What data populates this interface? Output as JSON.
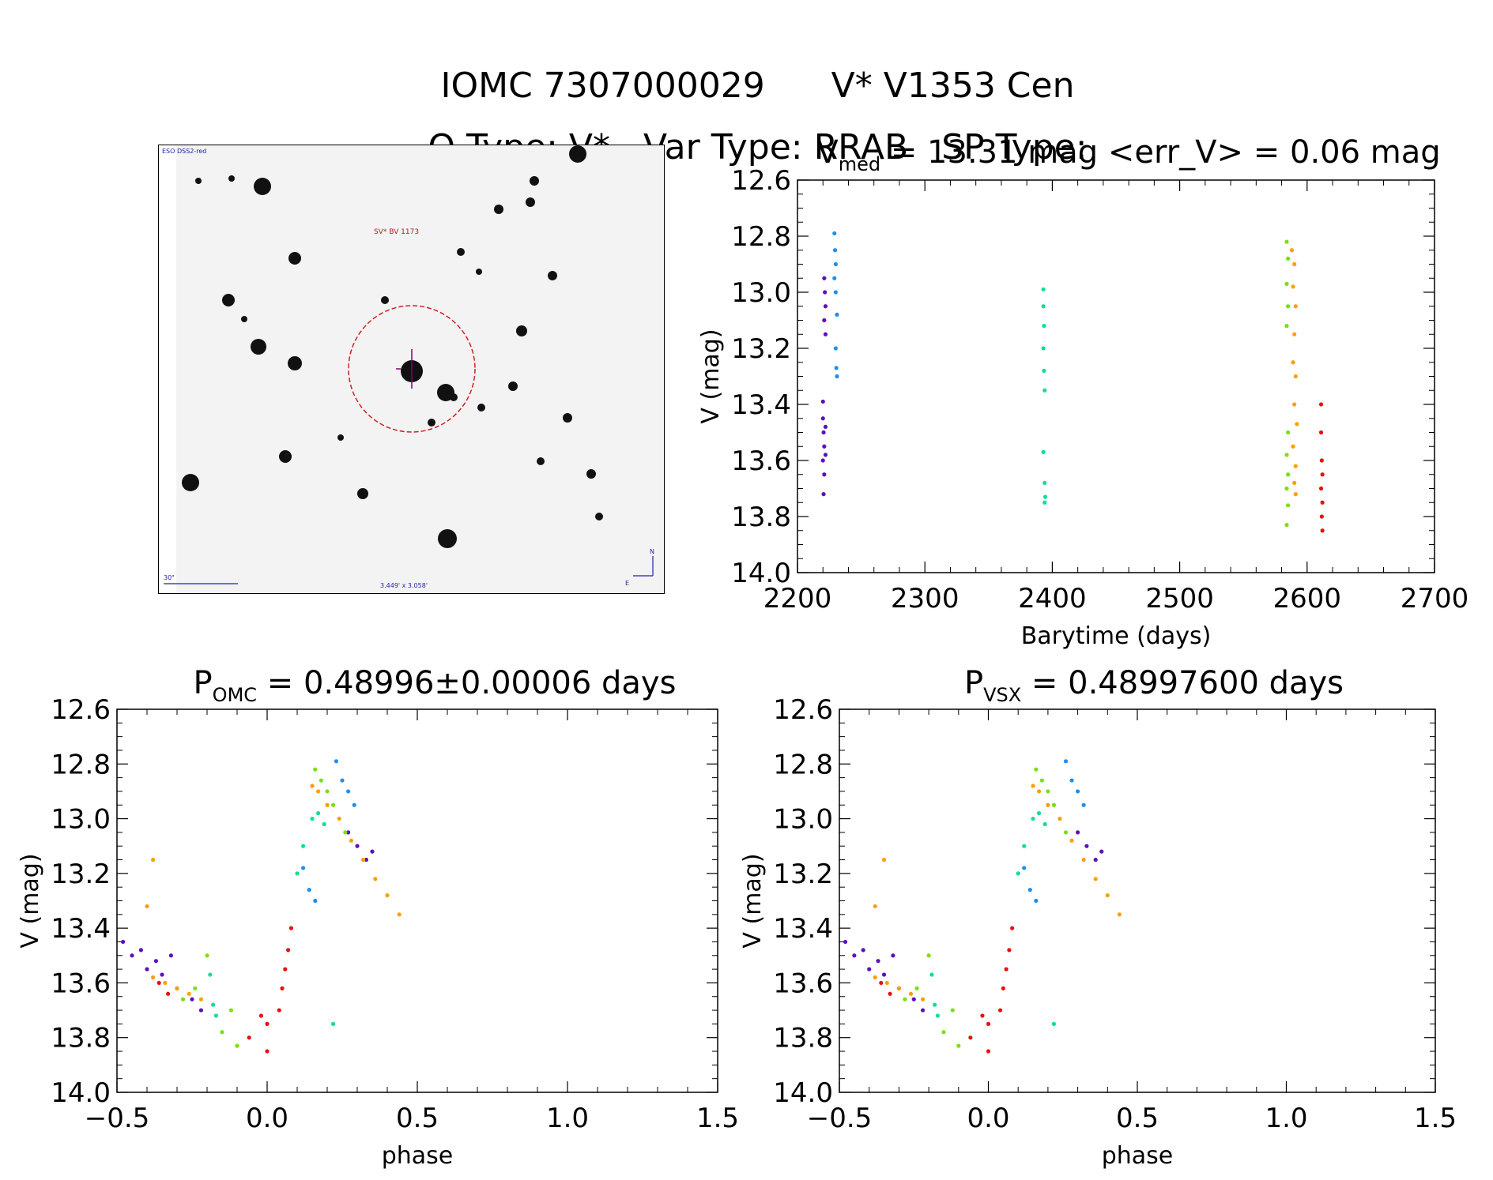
{
  "header": {
    "line1_id": "IOMC 7307000029",
    "line1_name": "V* V1353 Cen",
    "line2_otype": "O Type: V*",
    "line2_vartype": "Var Type: RRAB",
    "line2_sptype": "SP Type:"
  },
  "finder": {
    "survey": "ESO DSS2-red",
    "target_label": "SV* BV 1173",
    "scale_label": "30\"",
    "fov_label": "3.449' x 3.058'",
    "north": "N",
    "east": "E",
    "colors": {
      "circle": "#cc2222",
      "label": "#2222aa",
      "target_label": "#aa2222",
      "cross": "#880066"
    }
  },
  "titles": {
    "lightcurve": {
      "main": "V",
      "sub": "med",
      "rest": " = 13.31 mag <err_V> = 0.06 mag"
    },
    "phase_omc": {
      "main": "P",
      "sub": "OMC",
      "rest": " = 0.48996±0.00006 days"
    },
    "phase_vsx": {
      "main": "P",
      "sub": "VSX",
      "rest": " = 0.48997600 days"
    }
  },
  "chart_data": [
    {
      "type": "scatter",
      "name": "lightcurve",
      "xlabel": "Barytime (days)",
      "ylabel": "V (mag)",
      "xlim": [
        2200,
        2700
      ],
      "ylim": [
        14.0,
        12.6
      ],
      "y_inverted": true,
      "xticks": [
        2200,
        2300,
        2400,
        2500,
        2600,
        2700
      ],
      "xtick_labels": [
        "2200",
        "2300",
        "2400",
        "2500",
        "2600",
        "2700"
      ],
      "yticks": [
        12.6,
        12.8,
        13.0,
        13.2,
        13.4,
        13.6,
        13.8,
        14.0
      ],
      "ytick_labels": [
        "12.6",
        "12.8",
        "13.0",
        "13.2",
        "13.4",
        "13.6",
        "13.8",
        "14.0"
      ],
      "grid": false,
      "series": [
        {
          "color": "#5b10c0",
          "points": [
            [
              2220,
              13.39
            ],
            [
              2220,
              13.45
            ],
            [
              2220.5,
              13.5
            ],
            [
              2221,
              13.55
            ],
            [
              2220,
              13.6
            ],
            [
              2221,
              13.65
            ],
            [
              2220.5,
              13.72
            ],
            [
              2222,
              13.48
            ],
            [
              2222,
              13.58
            ],
            [
              2221,
              12.95
            ],
            [
              2221.5,
              13.0
            ],
            [
              2221,
              13.1
            ],
            [
              2222,
              13.15
            ],
            [
              2222,
              13.05
            ]
          ]
        },
        {
          "color": "#1e8ff0",
          "points": [
            [
              2229,
              12.79
            ],
            [
              2229.5,
              12.85
            ],
            [
              2230,
              12.9
            ],
            [
              2229,
              12.95
            ],
            [
              2230,
              13.0
            ],
            [
              2231,
              13.08
            ],
            [
              2230,
              13.2
            ],
            [
              2230.5,
              13.27
            ],
            [
              2231,
              13.3
            ]
          ]
        },
        {
          "color": "#10e090",
          "points": [
            [
              2393,
              12.99
            ],
            [
              2393,
              13.05
            ],
            [
              2393.5,
              13.12
            ],
            [
              2393,
              13.2
            ],
            [
              2393.5,
              13.28
            ],
            [
              2394,
              13.35
            ],
            [
              2393,
              13.57
            ],
            [
              2394,
              13.68
            ],
            [
              2394.5,
              13.73
            ],
            [
              2394,
              13.75
            ]
          ]
        },
        {
          "color": "#7be010",
          "points": [
            [
              2584,
              12.82
            ],
            [
              2585,
              12.88
            ],
            [
              2584,
              12.97
            ],
            [
              2585,
              13.05
            ],
            [
              2584,
              13.12
            ],
            [
              2585,
              13.5
            ],
            [
              2584,
              13.58
            ],
            [
              2585,
              13.65
            ],
            [
              2584,
              13.7
            ],
            [
              2585,
              13.76
            ],
            [
              2584,
              13.83
            ]
          ]
        },
        {
          "color": "#ff9f00",
          "points": [
            [
              2588,
              12.85
            ],
            [
              2590,
              12.9
            ],
            [
              2589,
              12.98
            ],
            [
              2591,
              13.05
            ],
            [
              2590,
              13.15
            ],
            [
              2589,
              13.25
            ],
            [
              2591,
              13.3
            ],
            [
              2590,
              13.4
            ],
            [
              2592,
              13.47
            ],
            [
              2589,
              13.55
            ],
            [
              2591,
              13.62
            ],
            [
              2590,
              13.68
            ],
            [
              2591,
              13.72
            ]
          ]
        },
        {
          "color": "#e81010",
          "points": [
            [
              2611,
              13.4
            ],
            [
              2611,
              13.5
            ],
            [
              2611.5,
              13.6
            ],
            [
              2612,
              13.65
            ],
            [
              2611,
              13.7
            ],
            [
              2612,
              13.75
            ],
            [
              2611.5,
              13.8
            ],
            [
              2612,
              13.85
            ]
          ]
        }
      ]
    },
    {
      "type": "scatter",
      "name": "phase_omc",
      "xlabel": "phase",
      "ylabel": "V (mag)",
      "xlim": [
        -0.5,
        1.5
      ],
      "ylim": [
        14.0,
        12.6
      ],
      "y_inverted": true,
      "xticks": [
        -0.5,
        0.0,
        0.5,
        1.0,
        1.5
      ],
      "xtick_labels": [
        "−0.5",
        "0.0",
        "0.5",
        "1.0",
        "1.5"
      ],
      "yticks": [
        12.6,
        12.8,
        13.0,
        13.2,
        13.4,
        13.6,
        13.8,
        14.0
      ],
      "ytick_labels": [
        "12.6",
        "12.8",
        "13.0",
        "13.2",
        "13.4",
        "13.6",
        "13.8",
        "14.0"
      ],
      "grid": false,
      "series": [
        {
          "color": "#5b10c0",
          "points": [
            [
              -0.48,
              13.45
            ],
            [
              -0.45,
              13.5
            ],
            [
              -0.42,
              13.48
            ],
            [
              -0.4,
              13.55
            ],
            [
              -0.37,
              13.52
            ],
            [
              -0.35,
              13.57
            ],
            [
              -0.32,
              13.5
            ],
            [
              -0.3,
              13.62
            ],
            [
              -0.25,
              13.66
            ],
            [
              -0.22,
              13.7
            ],
            [
              0.27,
              13.05
            ],
            [
              0.3,
              13.1
            ],
            [
              0.33,
              13.15
            ],
            [
              0.35,
              13.12
            ]
          ]
        },
        {
          "color": "#1e8ff0",
          "points": [
            [
              0.23,
              12.79
            ],
            [
              0.25,
              12.86
            ],
            [
              0.27,
              12.9
            ],
            [
              0.29,
              12.95
            ],
            [
              0.12,
              13.18
            ],
            [
              0.14,
              13.26
            ],
            [
              0.16,
              13.3
            ]
          ]
        },
        {
          "color": "#10e090",
          "points": [
            [
              0.1,
              13.2
            ],
            [
              0.12,
              13.1
            ],
            [
              0.15,
              13.0
            ],
            [
              0.17,
              12.98
            ],
            [
              0.19,
              13.02
            ],
            [
              -0.18,
              13.68
            ],
            [
              -0.17,
              13.72
            ],
            [
              -0.19,
              13.57
            ],
            [
              0.22,
              13.75
            ]
          ]
        },
        {
          "color": "#7be010",
          "points": [
            [
              0.16,
              12.82
            ],
            [
              0.18,
              12.86
            ],
            [
              0.2,
              12.9
            ],
            [
              0.22,
              12.95
            ],
            [
              0.26,
              13.05
            ],
            [
              -0.28,
              13.66
            ],
            [
              -0.24,
              13.62
            ],
            [
              -0.2,
              13.5
            ],
            [
              -0.15,
              13.78
            ],
            [
              -0.1,
              13.83
            ],
            [
              -0.12,
              13.7
            ]
          ]
        },
        {
          "color": "#ff9f00",
          "points": [
            [
              0.15,
              12.88
            ],
            [
              0.17,
              12.9
            ],
            [
              0.2,
              12.95
            ],
            [
              0.24,
              13.0
            ],
            [
              0.28,
              13.08
            ],
            [
              0.32,
              13.15
            ],
            [
              0.36,
              13.22
            ],
            [
              0.4,
              13.28
            ],
            [
              0.44,
              13.35
            ],
            [
              -0.38,
              13.58
            ],
            [
              -0.34,
              13.6
            ],
            [
              -0.3,
              13.62
            ],
            [
              -0.26,
              13.64
            ],
            [
              -0.22,
              13.66
            ],
            [
              -0.38,
              13.15
            ],
            [
              -0.4,
              13.32
            ]
          ]
        },
        {
          "color": "#e81010",
          "points": [
            [
              0.06,
              13.55
            ],
            [
              0.07,
              13.48
            ],
            [
              0.08,
              13.4
            ],
            [
              0.05,
              13.62
            ],
            [
              0.04,
              13.7
            ],
            [
              0.0,
              13.75
            ],
            [
              -0.02,
              13.72
            ],
            [
              -0.06,
              13.8
            ],
            [
              0.0,
              13.85
            ],
            [
              -0.36,
              13.6
            ],
            [
              -0.33,
              13.64
            ]
          ]
        }
      ]
    },
    {
      "type": "scatter",
      "name": "phase_vsx",
      "xlabel": "phase",
      "ylabel": "V (mag)",
      "xlim": [
        -0.5,
        1.5
      ],
      "ylim": [
        14.0,
        12.6
      ],
      "y_inverted": true,
      "xticks": [
        -0.5,
        0.0,
        0.5,
        1.0,
        1.5
      ],
      "xtick_labels": [
        "−0.5",
        "0.0",
        "0.5",
        "1.0",
        "1.5"
      ],
      "yticks": [
        12.6,
        12.8,
        13.0,
        13.2,
        13.4,
        13.6,
        13.8,
        14.0
      ],
      "ytick_labels": [
        "12.6",
        "12.8",
        "13.0",
        "13.2",
        "13.4",
        "13.6",
        "13.8",
        "14.0"
      ],
      "grid": false,
      "series": [
        {
          "color": "#5b10c0",
          "points": [
            [
              -0.48,
              13.45
            ],
            [
              -0.45,
              13.5
            ],
            [
              -0.42,
              13.48
            ],
            [
              -0.4,
              13.55
            ],
            [
              -0.37,
              13.52
            ],
            [
              -0.35,
              13.57
            ],
            [
              -0.32,
              13.5
            ],
            [
              -0.3,
              13.62
            ],
            [
              -0.25,
              13.66
            ],
            [
              -0.22,
              13.7
            ],
            [
              0.3,
              13.05
            ],
            [
              0.33,
              13.1
            ],
            [
              0.36,
              13.15
            ],
            [
              0.38,
              13.12
            ]
          ]
        },
        {
          "color": "#1e8ff0",
          "points": [
            [
              0.26,
              12.79
            ],
            [
              0.28,
              12.86
            ],
            [
              0.3,
              12.9
            ],
            [
              0.32,
              12.95
            ],
            [
              0.12,
              13.18
            ],
            [
              0.14,
              13.26
            ],
            [
              0.16,
              13.3
            ]
          ]
        },
        {
          "color": "#10e090",
          "points": [
            [
              0.1,
              13.2
            ],
            [
              0.12,
              13.1
            ],
            [
              0.15,
              13.0
            ],
            [
              0.17,
              12.98
            ],
            [
              0.19,
              13.02
            ],
            [
              -0.18,
              13.68
            ],
            [
              -0.17,
              13.72
            ],
            [
              -0.19,
              13.57
            ],
            [
              0.22,
              13.75
            ]
          ]
        },
        {
          "color": "#7be010",
          "points": [
            [
              0.16,
              12.82
            ],
            [
              0.18,
              12.86
            ],
            [
              0.2,
              12.9
            ],
            [
              0.22,
              12.95
            ],
            [
              0.26,
              13.05
            ],
            [
              -0.28,
              13.66
            ],
            [
              -0.24,
              13.62
            ],
            [
              -0.2,
              13.5
            ],
            [
              -0.15,
              13.78
            ],
            [
              -0.1,
              13.83
            ],
            [
              -0.12,
              13.7
            ]
          ]
        },
        {
          "color": "#ff9f00",
          "points": [
            [
              0.15,
              12.88
            ],
            [
              0.17,
              12.9
            ],
            [
              0.2,
              12.95
            ],
            [
              0.24,
              13.0
            ],
            [
              0.28,
              13.08
            ],
            [
              0.32,
              13.15
            ],
            [
              0.36,
              13.22
            ],
            [
              0.4,
              13.28
            ],
            [
              0.44,
              13.35
            ],
            [
              -0.38,
              13.58
            ],
            [
              -0.34,
              13.6
            ],
            [
              -0.3,
              13.62
            ],
            [
              -0.26,
              13.64
            ],
            [
              -0.22,
              13.66
            ],
            [
              -0.35,
              13.15
            ],
            [
              -0.38,
              13.32
            ]
          ]
        },
        {
          "color": "#e81010",
          "points": [
            [
              0.06,
              13.55
            ],
            [
              0.07,
              13.48
            ],
            [
              0.08,
              13.4
            ],
            [
              0.05,
              13.62
            ],
            [
              0.04,
              13.7
            ],
            [
              0.0,
              13.75
            ],
            [
              -0.02,
              13.72
            ],
            [
              -0.06,
              13.8
            ],
            [
              0.0,
              13.85
            ],
            [
              -0.36,
              13.6
            ],
            [
              -0.33,
              13.64
            ]
          ]
        }
      ]
    }
  ]
}
